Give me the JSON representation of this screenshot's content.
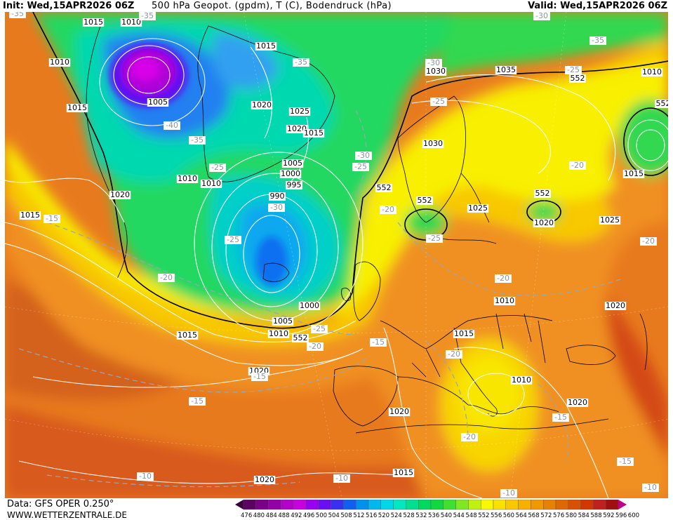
{
  "header": {
    "init": "Init: Wed,15APR2026 06Z",
    "title": "500 hPa Geopot. (gpdm), T (C), Bodendruck (hPa)",
    "valid": "Valid: Wed,15APR2026 06Z"
  },
  "footer": {
    "data_source": "Data: GFS OPER 0.250°",
    "site": "WWW.WETTERZENTRALE.DE"
  },
  "colorbar": {
    "values": [
      476,
      480,
      484,
      488,
      492,
      496,
      500,
      504,
      508,
      512,
      516,
      520,
      524,
      528,
      532,
      536,
      540,
      544,
      548,
      552,
      556,
      560,
      564,
      568,
      572,
      576,
      580,
      584,
      588,
      592,
      596,
      600
    ],
    "colors": [
      "#3a003a",
      "#5c0062",
      "#7a0088",
      "#9600a8",
      "#b400c8",
      "#c800e0",
      "#9a00f0",
      "#6a10f0",
      "#3a30f0",
      "#1060f0",
      "#0090f0",
      "#00b8f0",
      "#00d8e8",
      "#00e8c0",
      "#00e090",
      "#00d860",
      "#10d840",
      "#40e030",
      "#80e820",
      "#c0f010",
      "#f8f800",
      "#f8e000",
      "#f8c800",
      "#f8b000",
      "#f09800",
      "#e88000",
      "#e06800",
      "#d85000",
      "#d03800",
      "#c02020",
      "#a01010",
      "#c0008a"
    ]
  },
  "isobars": [
    "1015",
    "1010",
    "1010",
    "1015",
    "1005",
    "1015",
    "1020",
    "1025",
    "1020",
    "1015",
    "1010",
    "1010",
    "1005",
    "1000",
    "995",
    "990",
    "1030",
    "1035",
    "1030",
    "1025",
    "1020",
    "1025",
    "1010",
    "1015",
    "1020",
    "1015",
    "1005",
    "1000",
    "1010",
    "1015",
    "1020",
    "1015",
    "1010",
    "1010",
    "1020",
    "1020",
    "1015",
    "1020",
    "1020"
  ],
  "temps": [
    "-35",
    "-35",
    "-30",
    "-35",
    "-40",
    "-35",
    "-25",
    "-30",
    "-25",
    "-35",
    "-30",
    "-25",
    "-25",
    "-20",
    "-25",
    "-15",
    "-25",
    "-20",
    "-30",
    "-20",
    "-20",
    "-20",
    "-25",
    "-20",
    "-15",
    "-20",
    "-15",
    "-15",
    "-15",
    "-10",
    "-20",
    "-10",
    "-10",
    "-15",
    "-10"
  ],
  "geopot_552": [
    "552",
    "552",
    "552",
    "552",
    "552",
    "552"
  ]
}
